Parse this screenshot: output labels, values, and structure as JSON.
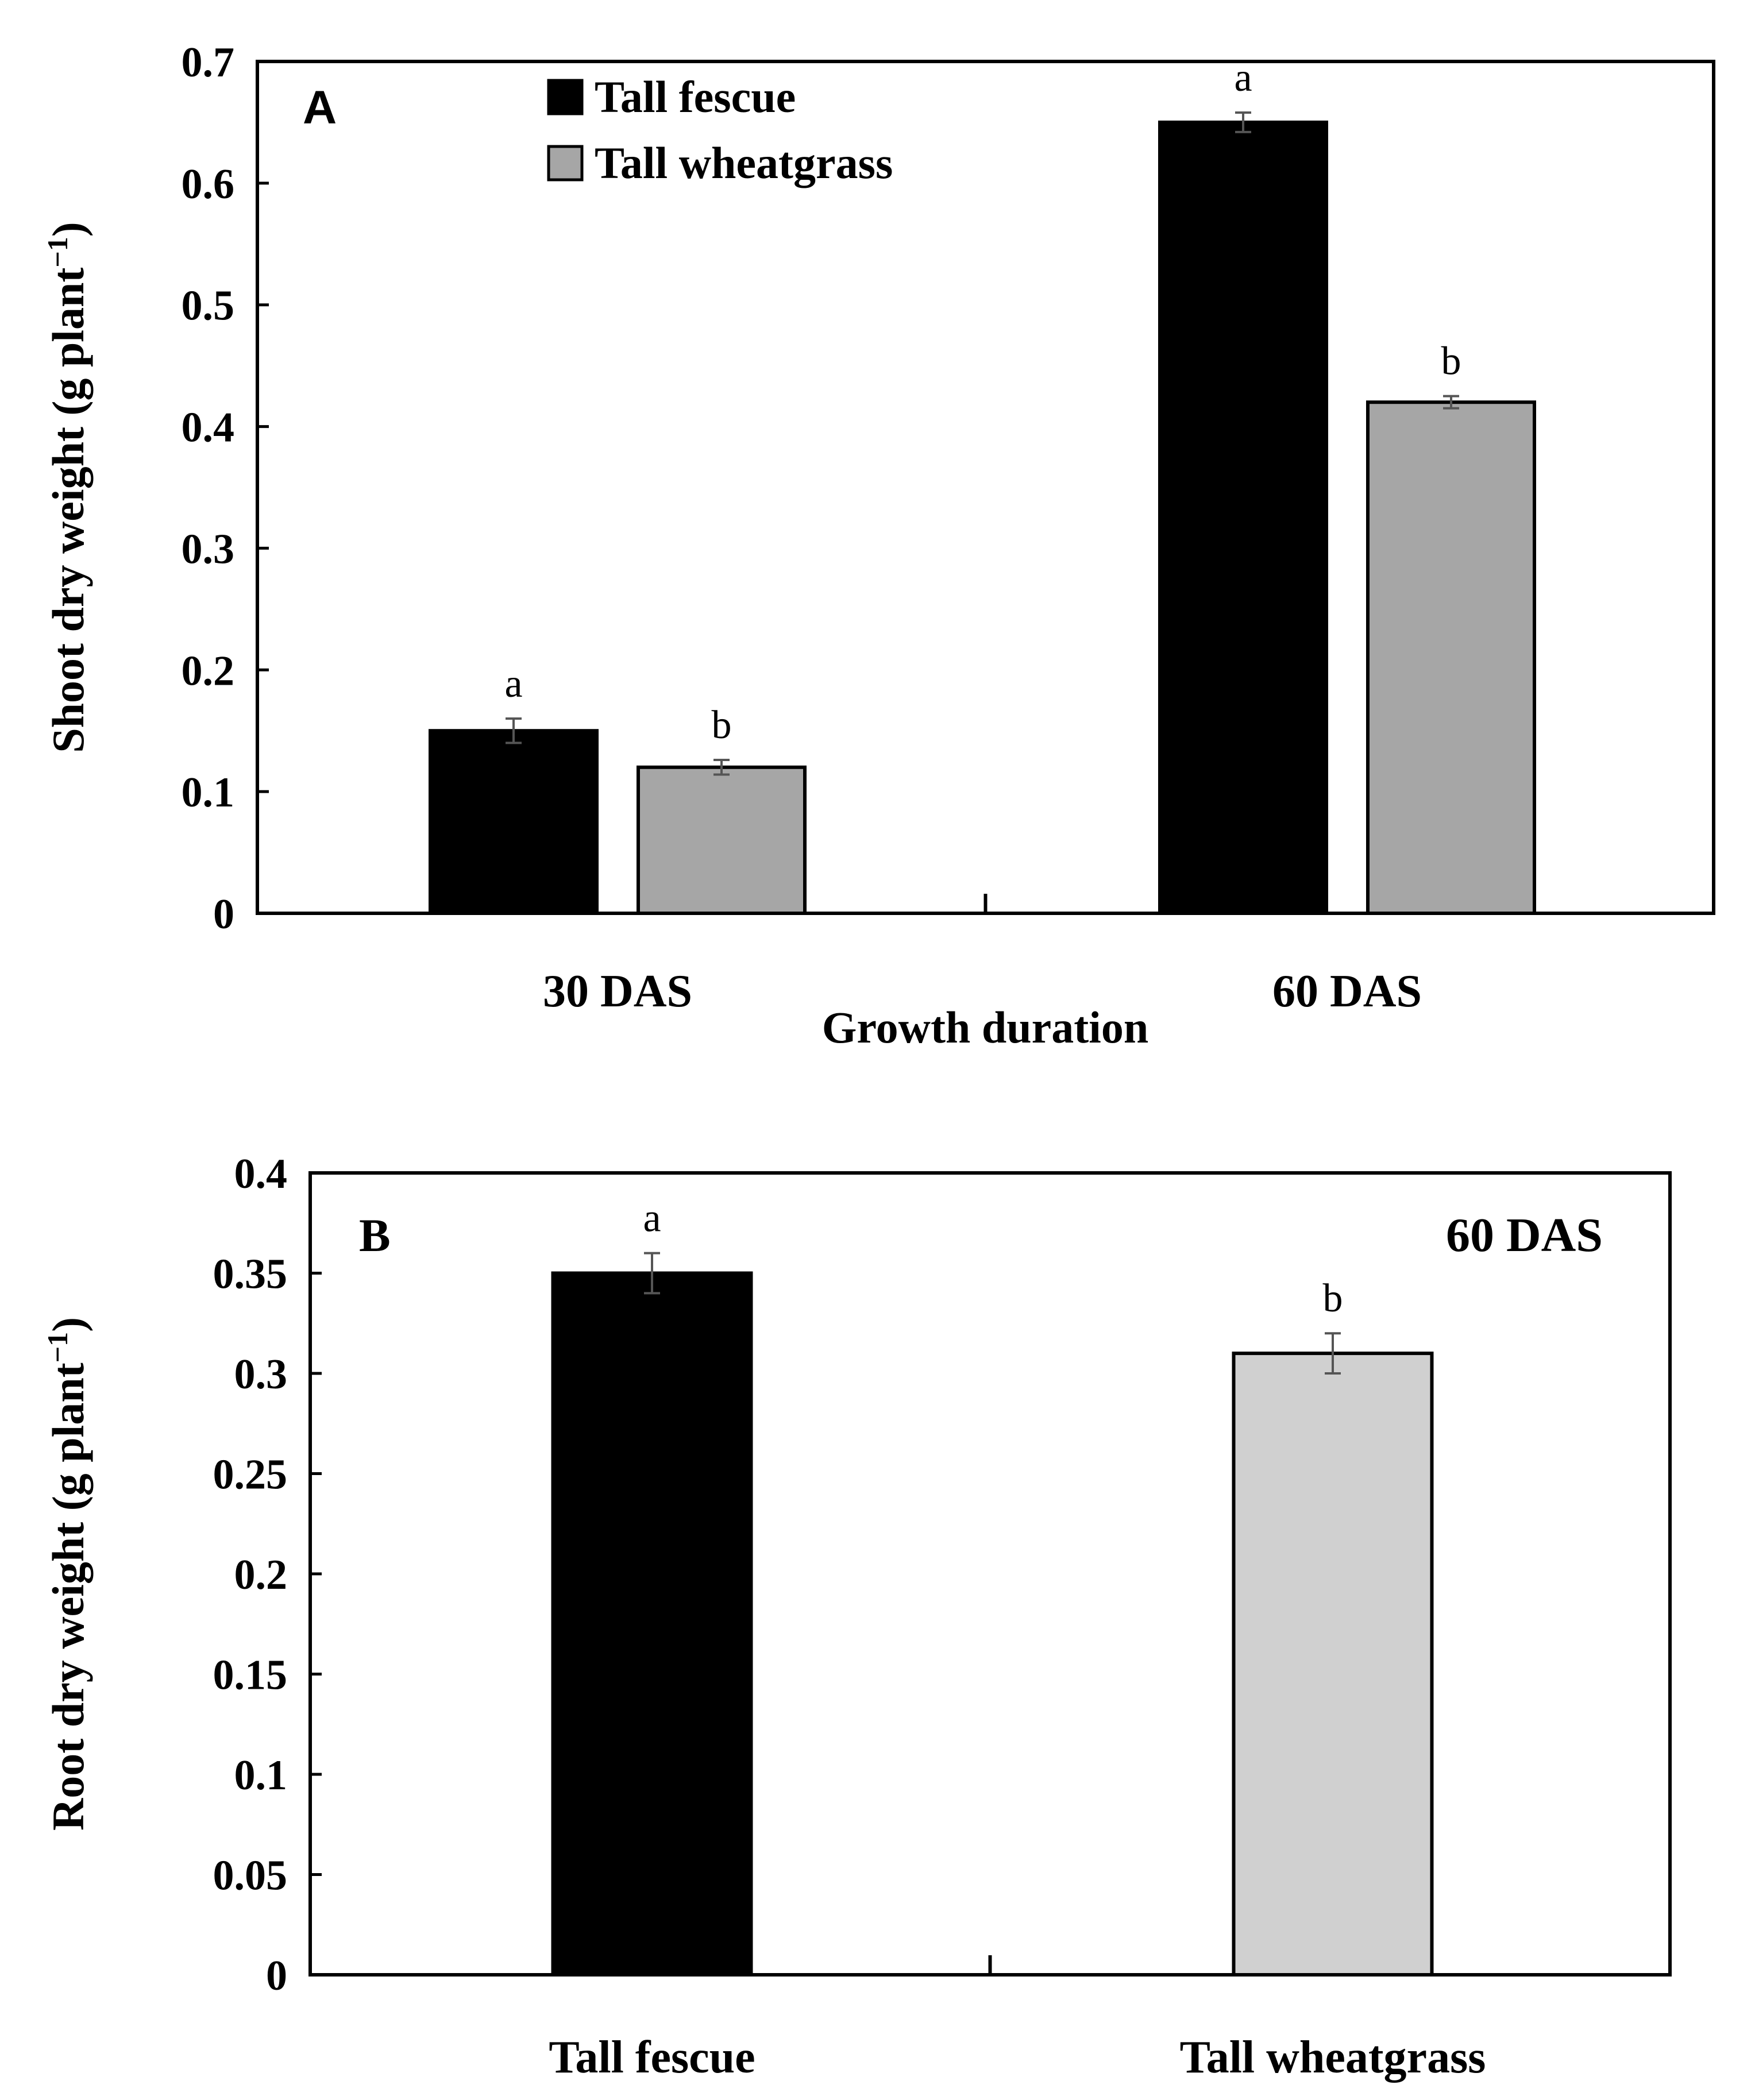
{
  "chart_data": [
    {
      "panel": "A",
      "type": "bar",
      "xlabel": "Growth duration",
      "ylabel": "Shoot dry weight (g plant",
      "ylabel_sup": "−1",
      "ylabel_close": ")",
      "ylim": [
        0,
        0.7
      ],
      "yticks": [
        0,
        0.1,
        0.2,
        0.3,
        0.4,
        0.5,
        0.6,
        0.7
      ],
      "ytick_labels": [
        "0",
        "0.1",
        "0.2",
        "0.3",
        "0.4",
        "0.5",
        "0.6",
        "0.7"
      ],
      "categories": [
        "30 DAS",
        "60 DAS"
      ],
      "series": [
        {
          "name": "Tall fescue",
          "color": "#000000",
          "values": [
            0.15,
            0.65
          ],
          "errors": [
            0.01,
            0.008
          ],
          "letters": [
            "a",
            "a"
          ]
        },
        {
          "name": "Tall wheatgrass",
          "color": "#a6a6a6",
          "values": [
            0.12,
            0.42
          ],
          "errors": [
            0.006,
            0.005
          ],
          "letters": [
            "b",
            "b"
          ]
        }
      ],
      "legend": "top-left",
      "grid": false
    },
    {
      "panel": "B",
      "type": "bar",
      "corner_label": "60 DAS",
      "xlabel": "",
      "ylabel": "Root dry weight (g plant",
      "ylabel_sup": "−1",
      "ylabel_close": ")",
      "ylim": [
        0,
        0.4
      ],
      "yticks": [
        0,
        0.05,
        0.1,
        0.15,
        0.2,
        0.25,
        0.3,
        0.35,
        0.4
      ],
      "ytick_labels": [
        "0",
        "0.05",
        "0.1",
        "0.15",
        "0.2",
        "0.25",
        "0.3",
        "0.35",
        "0.4"
      ],
      "categories": [
        "Tall fescue",
        "Tall wheatgrass"
      ],
      "series": [
        {
          "name": "Root dry weight",
          "colors": [
            "#000000",
            "#d0d0d0"
          ],
          "values": [
            0.35,
            0.31
          ],
          "errors": [
            0.01,
            0.01
          ],
          "letters": [
            "a",
            "b"
          ]
        }
      ],
      "grid": false
    }
  ]
}
